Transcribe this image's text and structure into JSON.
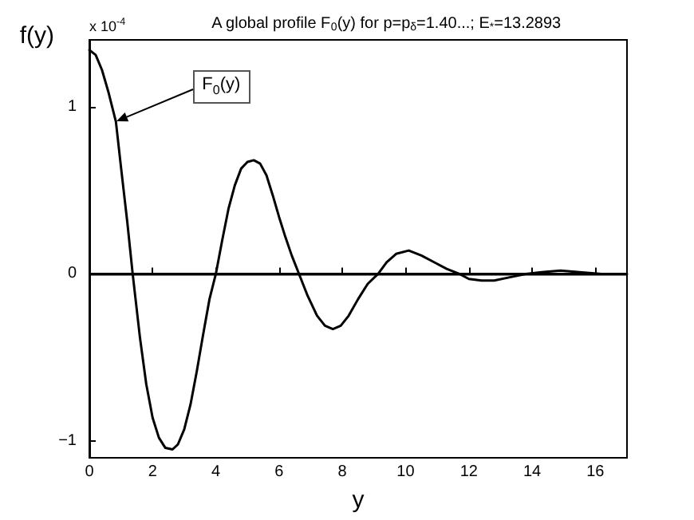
{
  "chart_data": {
    "type": "line",
    "title": "A global profile F$_{0}$(y) for p=p$_{δ}$=1.40...; E$_{*}$=13.2893",
    "xlabel": "y",
    "ylabel": "f(y)",
    "annotations": [
      "x 10$^{-4}$",
      {
        "text": "F$_{0}$(y)",
        "x": 0.84,
        "y": 0.91
      }
    ],
    "x": [
      0,
      0.2,
      0.4,
      0.6,
      0.84,
      1.0,
      1.2,
      1.37,
      1.6,
      1.8,
      2.0,
      2.2,
      2.4,
      2.63,
      2.8,
      3.0,
      3.2,
      3.4,
      3.6,
      3.8,
      4.0,
      4.2,
      4.4,
      4.6,
      4.8,
      5.0,
      5.2,
      5.4,
      5.6,
      5.8,
      6.0,
      6.2,
      6.4,
      6.63,
      6.9,
      7.2,
      7.45,
      7.7,
      7.95,
      8.2,
      8.5,
      8.8,
      9.13,
      9.4,
      9.7,
      10.1,
      10.5,
      10.9,
      11.3,
      11.7,
      12.0,
      12.4,
      12.8,
      13.3,
      13.8,
      14.3,
      14.9,
      15.5,
      16.2,
      17
    ],
    "series": [
      {
        "color": "#000000",
        "values": [
          1.34,
          1.31,
          1.22,
          1.09,
          0.91,
          0.64,
          0.31,
          0,
          -0.38,
          -0.66,
          -0.86,
          -0.98,
          -1.04,
          -1.05,
          -1.02,
          -0.93,
          -0.78,
          -0.58,
          -0.36,
          -0.15,
          0,
          0.2,
          0.39,
          0.53,
          0.63,
          0.67,
          0.68,
          0.66,
          0.59,
          0.47,
          0.34,
          0.22,
          0.11,
          0,
          -0.13,
          -0.25,
          -0.31,
          -0.33,
          -0.31,
          -0.25,
          -0.15,
          -0.06,
          0,
          0.07,
          0.12,
          0.14,
          0.11,
          0.07,
          0.03,
          0,
          -0.03,
          -0.04,
          -0.04,
          -0.02,
          0,
          0.01,
          0.02,
          0.01,
          0,
          0
        ]
      }
    ],
    "xlim": [
      0,
      17
    ],
    "xticks": [
      0,
      2,
      4,
      6,
      8,
      10,
      12,
      14,
      16
    ],
    "ylim": [
      -1.1,
      1.4
    ],
    "yticks": [
      -1,
      0,
      1
    ],
    "ref_lines": [
      {
        "axis": "y",
        "value": 0,
        "color": "#000000"
      }
    ],
    "grid": false,
    "marker": "none",
    "line_style": "solid"
  }
}
